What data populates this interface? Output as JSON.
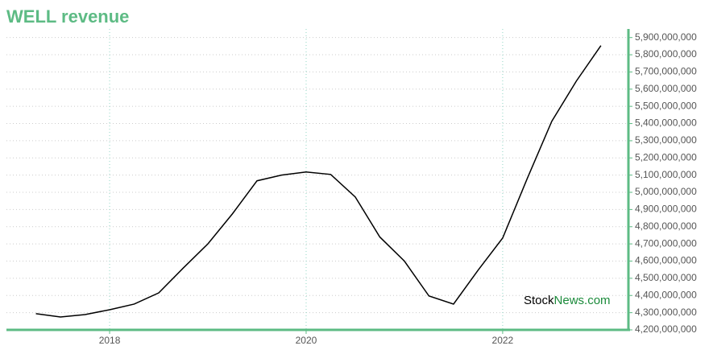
{
  "chart_data": {
    "type": "line",
    "title": "WELL revenue",
    "watermark": {
      "part1": "Stock",
      "part2": "News.com"
    },
    "x": [
      2017.25,
      2017.5,
      2017.75,
      2018.0,
      2018.25,
      2018.5,
      2018.75,
      2019.0,
      2019.25,
      2019.5,
      2019.75,
      2020.0,
      2020.25,
      2020.5,
      2020.75,
      2021.0,
      2021.25,
      2021.5,
      2021.75,
      2022.0,
      2022.25,
      2022.5,
      2022.75,
      2023.0
    ],
    "series": [
      {
        "name": "revenue",
        "color": "#000000",
        "values": [
          4294000000,
          4275000000,
          4289000000,
          4317000000,
          4350000000,
          4415000000,
          4560000000,
          4700000000,
          4875000000,
          5067000000,
          5100000000,
          5118000000,
          5104000000,
          4973000000,
          4740000000,
          4600000000,
          4397000000,
          4350000000,
          4547000000,
          4734000000,
          5080000000,
          5413000000,
          5647000000,
          5853000000
        ]
      }
    ],
    "xlim": [
      2016.95,
      2023.28
    ],
    "xticks": [
      2018,
      2020,
      2022
    ],
    "ylim": [
      4200000000,
      5950000000
    ],
    "yticks": [
      {
        "value": 4200000000,
        "label": "4,200,000,000"
      },
      {
        "value": 4300000000,
        "label": "4,300,000,000"
      },
      {
        "value": 4400000000,
        "label": "4,400,000,000"
      },
      {
        "value": 4500000000,
        "label": "4,500,000,000"
      },
      {
        "value": 4600000000,
        "label": "4,600,000,000"
      },
      {
        "value": 4700000000,
        "label": "4,700,000,000"
      },
      {
        "value": 4800000000,
        "label": "4,800,000,000"
      },
      {
        "value": 4900000000,
        "label": "4,900,000,000"
      },
      {
        "value": 5000000000,
        "label": "5,000,000,000"
      },
      {
        "value": 5100000000,
        "label": "5,100,000,000"
      },
      {
        "value": 5200000000,
        "label": "5,200,000,000"
      },
      {
        "value": 5300000000,
        "label": "5,300,000,000"
      },
      {
        "value": 5400000000,
        "label": "5,400,000,000"
      },
      {
        "value": 5500000000,
        "label": "5,500,000,000"
      },
      {
        "value": 5600000000,
        "label": "5,600,000,000"
      },
      {
        "value": 5700000000,
        "label": "5,700,000,000"
      },
      {
        "value": 5800000000,
        "label": "5,800,000,000"
      },
      {
        "value": 5900000000,
        "label": "5,900,000,000"
      }
    ],
    "grid": true,
    "axis_color": "#5dbb84"
  }
}
